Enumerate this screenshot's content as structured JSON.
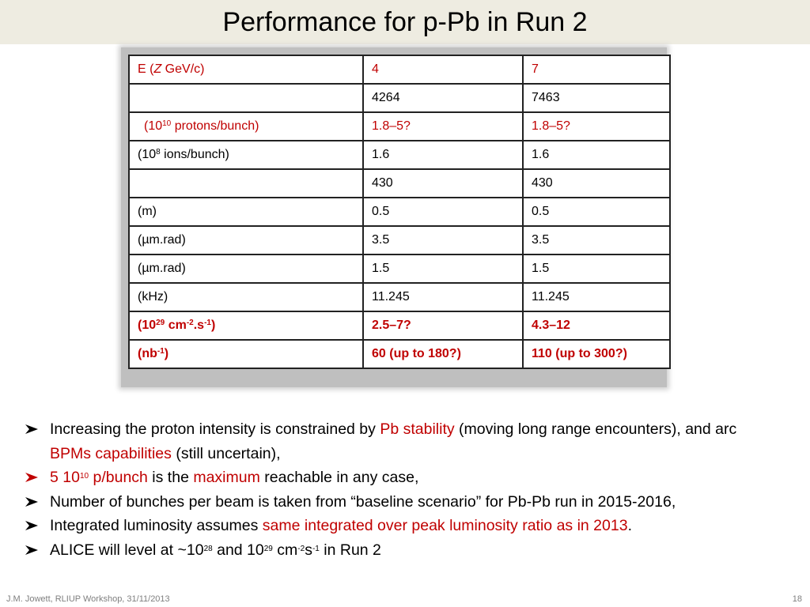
{
  "slide": {
    "title": "Performance for p-Pb in Run 2",
    "footer_left": "J.M. Jowett, RLIUP Workshop, 31/11/2013",
    "page_number": "18"
  },
  "colors": {
    "highlight": "#c00000",
    "title_bar": "#eeece1"
  },
  "table": {
    "r0": {
      "c0_pre": "E (",
      "c0_italic": "Z",
      "c0_post": " GeV/c)",
      "c1": "4",
      "c2": "7"
    },
    "r1": {
      "c0": "",
      "c1": "4264",
      "c2": "7463"
    },
    "r2": {
      "c0_pre": "(10",
      "c0_sup": "10",
      "c0_post": " protons/bunch)",
      "c1": "1.8–5?",
      "c2": "1.8–5?"
    },
    "r3": {
      "c0_pre": "(10",
      "c0_sup": "8",
      "c0_post": " ions/bunch)",
      "c1": "1.6",
      "c2": "1.6"
    },
    "r4": {
      "c0": "",
      "c1": "430",
      "c2": "430"
    },
    "r5": {
      "c0": "(m)",
      "c1": "0.5",
      "c2": "0.5"
    },
    "r6": {
      "c0": "(µm.rad)",
      "c1": "3.5",
      "c2": "3.5"
    },
    "r7": {
      "c0": "(µm.rad)",
      "c1": "1.5",
      "c2": "1.5"
    },
    "r8": {
      "c0": "(kHz)",
      "c1": "11.245",
      "c2": "11.245"
    },
    "r9": {
      "c0_a": "(10",
      "c0_sup1": "29",
      "c0_b": " cm",
      "c0_sup2": "-2",
      "c0_c": ".s",
      "c0_sup3": "-1",
      "c0_d": ")",
      "c1": "2.5–7?",
      "c2": "4.3–12"
    },
    "r10": {
      "c0_a": "(nb",
      "c0_sup": "-1",
      "c0_b": ")",
      "c1": "60  (up to 180?)",
      "c2": "110  (up to 300?)"
    }
  },
  "bullets": {
    "b1": {
      "t1": "Increasing the proton intensity is  constrained by ",
      "h1": "Pb stability",
      "t2": " (moving long range encounters), and arc ",
      "h2": "BPMs capabilities",
      "t3": " (still uncertain),"
    },
    "b2": {
      "h1a": "5 10",
      "h1sup": "10",
      "h1b": " p/bunch",
      "t1": " is the ",
      "h2": "maximum",
      "t2": " reachable in any case,"
    },
    "b3": {
      "t1": "Number of bunches per beam is taken from “baseline scenario” for Pb-Pb run in 2015-2016,"
    },
    "b4": {
      "t1": "Integrated luminosity assumes ",
      "h1": "same integrated over peak luminosity ratio as in 2013",
      "t2": "."
    },
    "b5": {
      "t1": "ALICE will level at ~10",
      "s1": "28",
      "t2": " and 10",
      "s2": "29",
      "t3": " cm",
      "s3": "-2",
      "t4": "s",
      "s4": "-1",
      "t5": " in Run 2"
    }
  }
}
